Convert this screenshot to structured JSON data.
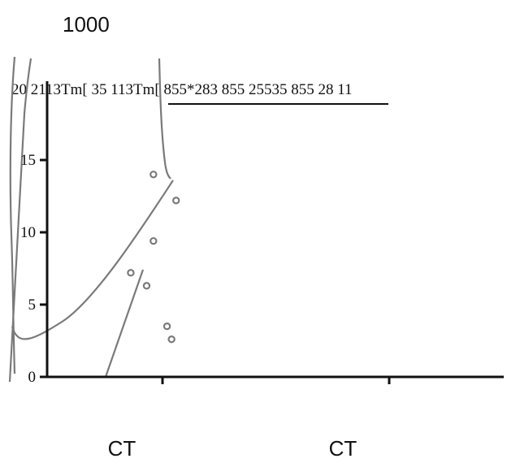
{
  "chart_data": {
    "type": "scatter",
    "title": "1000",
    "garbled_header": "20 2113Tm[ 35 113Tm[ 855*283 855 25535 855 28 11",
    "categories": [
      "CT",
      "CT"
    ],
    "yticks": [
      "0",
      "5",
      "10",
      "15",
      "20"
    ],
    "ylim": [
      0,
      20
    ],
    "points": [
      {
        "x": 0.96,
        "y": 14.0
      },
      {
        "x": 1.06,
        "y": 12.2
      },
      {
        "x": 0.96,
        "y": 9.4
      },
      {
        "x": 0.86,
        "y": 7.2
      },
      {
        "x": 0.93,
        "y": 6.3
      },
      {
        "x": 1.02,
        "y": 3.5
      },
      {
        "x": 1.04,
        "y": 2.6
      }
    ],
    "colors": {
      "axis": "#111111",
      "marks": "#7a7a7a"
    }
  }
}
